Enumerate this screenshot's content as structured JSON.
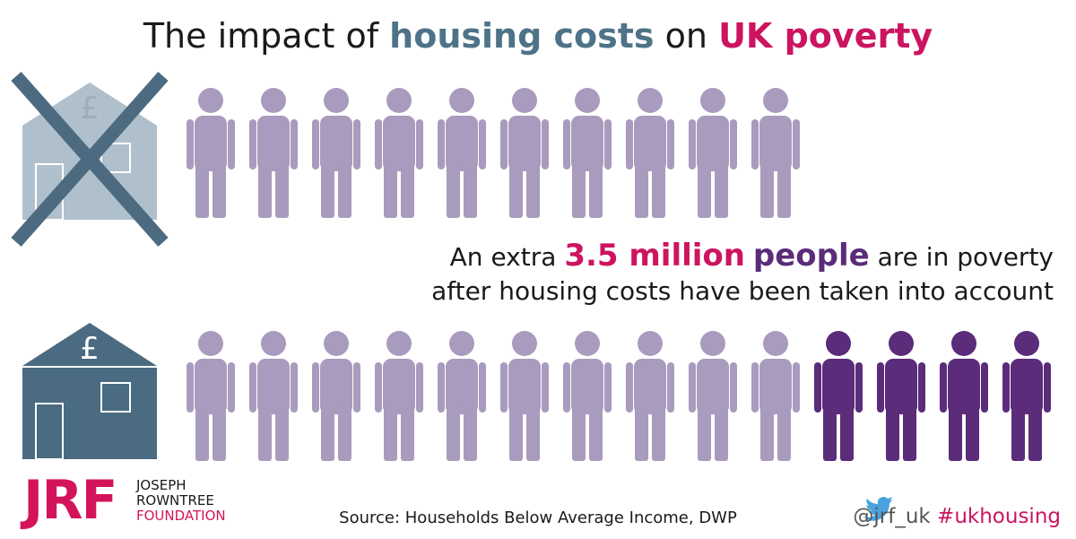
{
  "title": {
    "part1": "The impact of",
    "part2": "housing costs",
    "part3": "on",
    "part4": "UK poverty"
  },
  "house_symbol": "£",
  "headline": {
    "line1": {
      "part1": "An extra",
      "part2": "3.5 million",
      "part3": "people",
      "part4": "are in poverty"
    },
    "line2": "after housing costs have been taken into account"
  },
  "logo": {
    "mark": "JRF",
    "line1": "JOSEPH",
    "line2": "ROWNTREE",
    "line3": "FOUNDATION"
  },
  "source": "Source: Households Below Average Income, DWP",
  "social": {
    "handle": "@jrf_uk",
    "hashtag": "#ukhousing"
  }
}
